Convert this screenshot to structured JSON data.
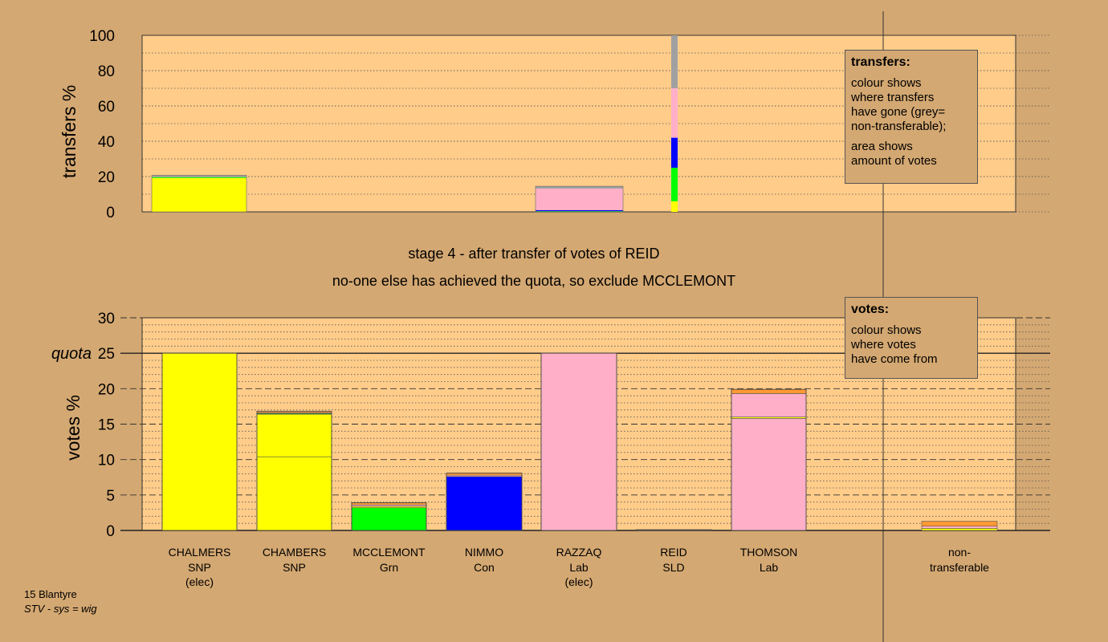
{
  "chart_data": [
    {
      "type": "bar",
      "name": "transfers-chart",
      "ylabel": "transfers %",
      "ylim": [
        0,
        100
      ],
      "yticks": [
        0,
        20,
        40,
        60,
        80,
        100
      ],
      "stacks": [
        {
          "candidate": "CHALMERS",
          "segments": [
            {
              "color": "#FFFF00",
              "value": 19.2
            },
            {
              "color": "#00FF00",
              "value": 0.5
            },
            {
              "color": "#A0A0A0",
              "value": 1.0
            }
          ]
        },
        {
          "candidate": "RAZZAQ",
          "segments": [
            {
              "color": "#00FF00",
              "value": 0.4
            },
            {
              "color": "#0000FF",
              "value": 0.6
            },
            {
              "color": "#FFB0C8",
              "value": 12.2
            },
            {
              "color": "#A0A0A0",
              "value": 1.3
            }
          ]
        }
      ],
      "transfer_column": {
        "candidate": "REID",
        "segments": [
          {
            "color": "#FFFF00",
            "value": 6
          },
          {
            "color": "#00FF00",
            "value": 19
          },
          {
            "color": "#0000FF",
            "value": 17
          },
          {
            "color": "#FFB0C8",
            "value": 28
          },
          {
            "color": "#A0A0A0",
            "value": 30
          }
        ]
      }
    },
    {
      "type": "bar",
      "name": "votes-chart",
      "ylabel": "votes %",
      "ylim": [
        0,
        30
      ],
      "yticks": [
        0,
        5,
        10,
        15,
        20,
        25,
        30
      ],
      "quota": 25,
      "quota_label": "quota",
      "candidates": [
        {
          "name": "CHALMERS",
          "party": "SNP",
          "note": "(elec)",
          "segments": [
            {
              "color": "#FFFF00",
              "value": 25
            }
          ]
        },
        {
          "name": "CHAMBERS",
          "party": "SNP",
          "note": "",
          "segments": [
            {
              "color": "#FFFF00",
              "value": 10.4
            },
            {
              "color": "#FFFF00",
              "value": 6.0
            },
            {
              "color": "#00FF00",
              "value": 0.1
            },
            {
              "color": "#FFB0C8",
              "value": 0.1
            },
            {
              "color": "#FF9933",
              "value": 0.2
            }
          ]
        },
        {
          "name": "MCCLEMONT",
          "party": "Grn",
          "note": "",
          "segments": [
            {
              "color": "#00FF00",
              "value": 3.2
            },
            {
              "color": "#FFFF00",
              "value": 0.2
            },
            {
              "color": "#FFB0C8",
              "value": 0.2
            },
            {
              "color": "#FF9933",
              "value": 0.3
            }
          ]
        },
        {
          "name": "NIMMO",
          "party": "Con",
          "note": "",
          "segments": [
            {
              "color": "#0000FF",
              "value": 7.6
            },
            {
              "color": "#FFB0C8",
              "value": 0.2
            },
            {
              "color": "#FF9933",
              "value": 0.3
            }
          ]
        },
        {
          "name": "RAZZAQ",
          "party": "Lab",
          "note": "(elec)",
          "segments": [
            {
              "color": "#FFB0C8",
              "value": 25
            }
          ]
        },
        {
          "name": "REID",
          "party": "SLD",
          "note": "",
          "segments": [
            {
              "color": "#FF9933",
              "value": 0.1
            }
          ]
        },
        {
          "name": "THOMSON",
          "party": "Lab",
          "note": "",
          "segments": [
            {
              "color": "#FFB0C8",
              "value": 15.8
            },
            {
              "color": "#FFFF00",
              "value": 0.2
            },
            {
              "color": "#FFB0C8",
              "value": 3.3
            },
            {
              "color": "#FF9933",
              "value": 0.6
            }
          ]
        }
      ],
      "non_transferable": {
        "label_line1": "non-",
        "label_line2": "transferable",
        "segments": [
          {
            "color": "#FFFF00",
            "value": 0.3
          },
          {
            "color": "#FFB0C8",
            "value": 0.3
          },
          {
            "color": "#FF9933",
            "value": 0.7
          }
        ]
      }
    }
  ],
  "stage_title": "stage 4 - after transfer of votes of REID",
  "stage_subtitle": "no-one else has achieved the quota, so exclude MCCLEMONT",
  "transfers_legend": {
    "title": "transfers:",
    "line1": "colour shows",
    "line2": "where transfers",
    "line3": "have gone (grey=",
    "line4": "non-transferable);",
    "line5": "area shows",
    "line6": "amount of votes"
  },
  "votes_legend": {
    "title": "votes:",
    "line1": "colour shows",
    "line2": "where votes",
    "line3": "have come from"
  },
  "footer": {
    "ward": "15 Blantyre",
    "system": "STV - sys = wig"
  },
  "colors": {
    "background": "#D4A872",
    "plot_area": "#FFCC8A"
  }
}
